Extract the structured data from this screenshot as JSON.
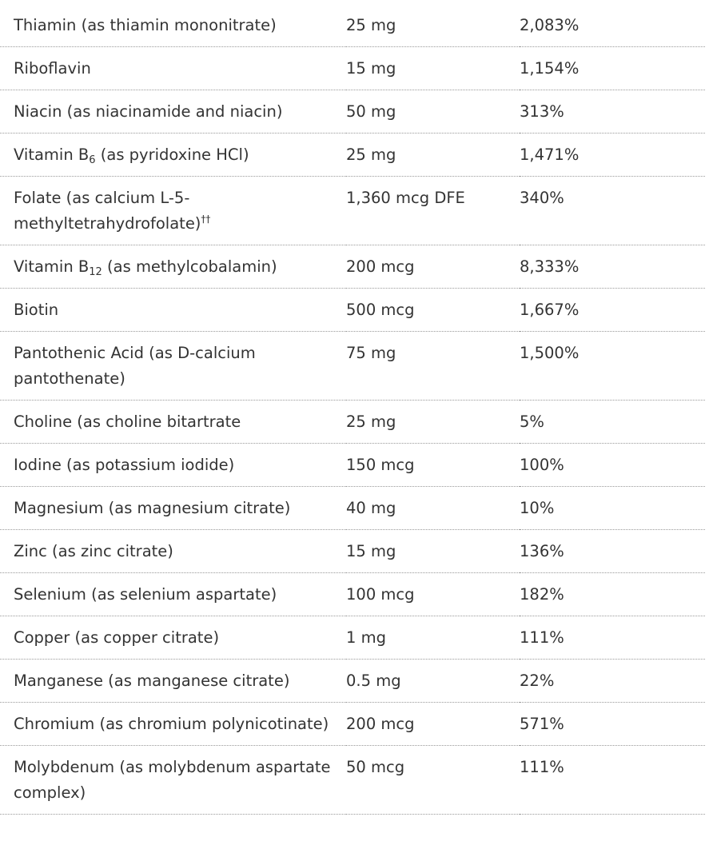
{
  "rows": [
    {
      "name": "Thiamin (as thiamin mononitrate)",
      "sub": "",
      "post": "",
      "sup": "",
      "amount": "25 mg",
      "dv": "2,083%"
    },
    {
      "name": "Riboflavin",
      "sub": "",
      "post": "",
      "sup": "",
      "amount": "15 mg",
      "dv": "1,154%"
    },
    {
      "name": "Niacin (as niacinamide and niacin)",
      "sub": "",
      "post": "",
      "sup": "",
      "amount": "50 mg",
      "dv": "313%"
    },
    {
      "name": "Vitamin B",
      "sub": "6",
      "post": " (as pyridoxine HCl)",
      "sup": "",
      "amount": "25 mg",
      "dv": "1,471%"
    },
    {
      "name": "Folate (as calcium L-5-methyltetrahydrofolate)",
      "sub": "",
      "post": "",
      "sup": "††",
      "amount": "1,360 mcg DFE",
      "dv": "340%"
    },
    {
      "name": "Vitamin B",
      "sub": "12",
      "post": " (as methylcobalamin)",
      "sup": "",
      "amount": "200 mcg",
      "dv": "8,333%"
    },
    {
      "name": "Biotin",
      "sub": "",
      "post": "",
      "sup": "",
      "amount": "500 mcg",
      "dv": "1,667%"
    },
    {
      "name": "Pantothenic Acid (as D-calcium pantothenate)",
      "sub": "",
      "post": "",
      "sup": "",
      "amount": "75 mg",
      "dv": "1,500%"
    },
    {
      "name": "Choline (as choline bitartrate",
      "sub": "",
      "post": "",
      "sup": "",
      "amount": "25 mg",
      "dv": "5%"
    },
    {
      "name": "Iodine (as potassium iodide)",
      "sub": "",
      "post": "",
      "sup": "",
      "amount": "150 mcg",
      "dv": "100%"
    },
    {
      "name": "Magnesium (as magnesium citrate)",
      "sub": "",
      "post": "",
      "sup": "",
      "amount": "40 mg",
      "dv": "10%"
    },
    {
      "name": "Zinc (as zinc citrate)",
      "sub": "",
      "post": "",
      "sup": "",
      "amount": "15 mg",
      "dv": "136%"
    },
    {
      "name": "Selenium (as selenium aspartate)",
      "sub": "",
      "post": "",
      "sup": "",
      "amount": "100 mcg",
      "dv": "182%"
    },
    {
      "name": "Copper (as copper citrate)",
      "sub": "",
      "post": "",
      "sup": "",
      "amount": "1 mg",
      "dv": "111%"
    },
    {
      "name": "Manganese (as manganese citrate)",
      "sub": "",
      "post": "",
      "sup": "",
      "amount": "0.5 mg",
      "dv": "22%"
    },
    {
      "name": "Chromium (as chromium polynicotinate)",
      "sub": "",
      "post": "",
      "sup": "",
      "amount": "200 mcg",
      "dv": "571%"
    },
    {
      "name": "Molybdenum (as molybdenum aspartate complex)",
      "sub": "",
      "post": "",
      "sup": "",
      "amount": "50 mcg",
      "dv": "111%"
    }
  ]
}
